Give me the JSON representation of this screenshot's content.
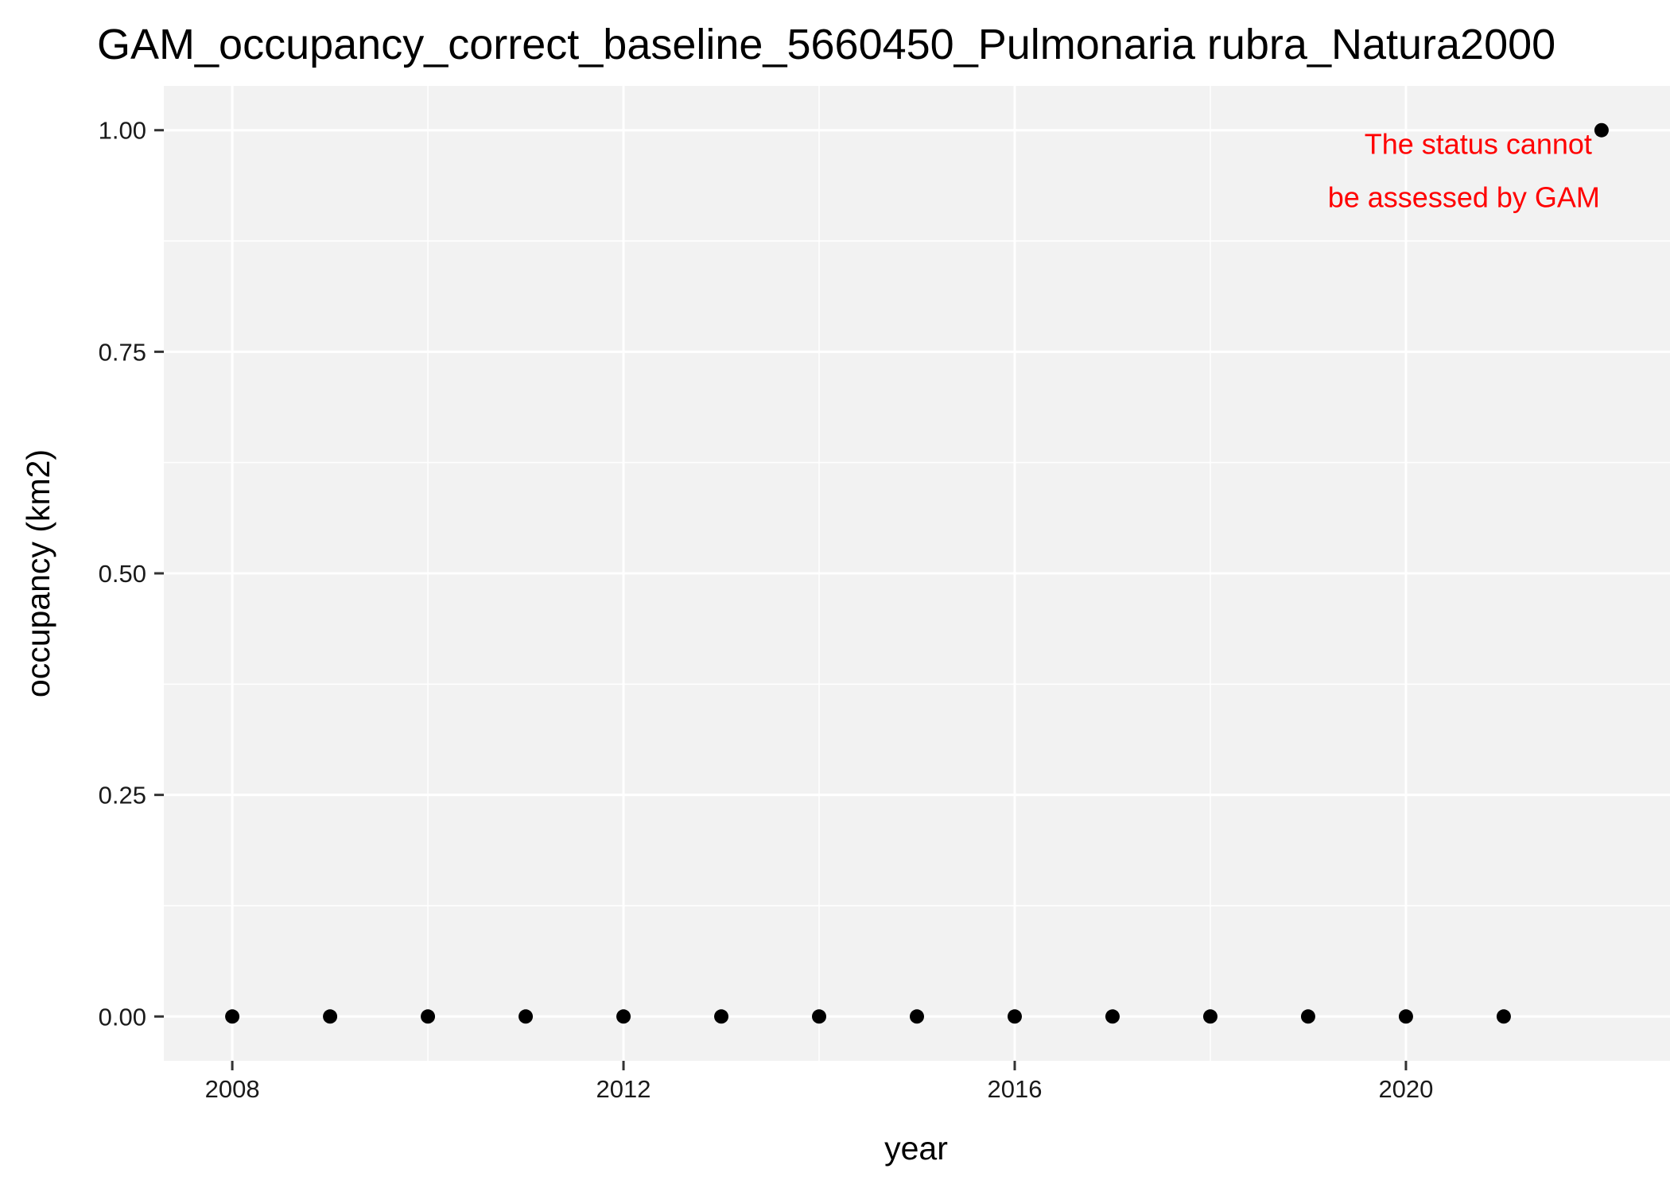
{
  "chart_data": {
    "type": "scatter",
    "title": "GAM_occupancy_correct_baseline_5660450_Pulmonaria rubra_Natura2000",
    "xlabel": "year",
    "ylabel": "occupancy (km2)",
    "x": [
      2008,
      2009,
      2010,
      2011,
      2012,
      2013,
      2014,
      2015,
      2016,
      2017,
      2018,
      2019,
      2020,
      2021,
      2022
    ],
    "y": [
      0,
      0,
      0,
      0,
      0,
      0,
      0,
      0,
      0,
      0,
      0,
      0,
      0,
      0,
      1
    ],
    "xlim": [
      2007.3,
      2022.7
    ],
    "ylim": [
      -0.05,
      1.05
    ],
    "x_ticks": [
      2008,
      2012,
      2016,
      2020
    ],
    "x_tick_labels": [
      "2008",
      "2012",
      "2016",
      "2020"
    ],
    "y_ticks": [
      0,
      0.25,
      0.5,
      0.75,
      1.0
    ],
    "y_tick_labels": [
      "0.00",
      "0.25",
      "0.50",
      "0.75",
      "1.00"
    ],
    "grid": true,
    "panel_background": "#f2f2f2",
    "grid_color": "#ffffff",
    "point_color": "#000000",
    "annotation": {
      "lines": [
        "The status cannot",
        "be assessed by GAM"
      ],
      "color": "#ff0000"
    }
  }
}
